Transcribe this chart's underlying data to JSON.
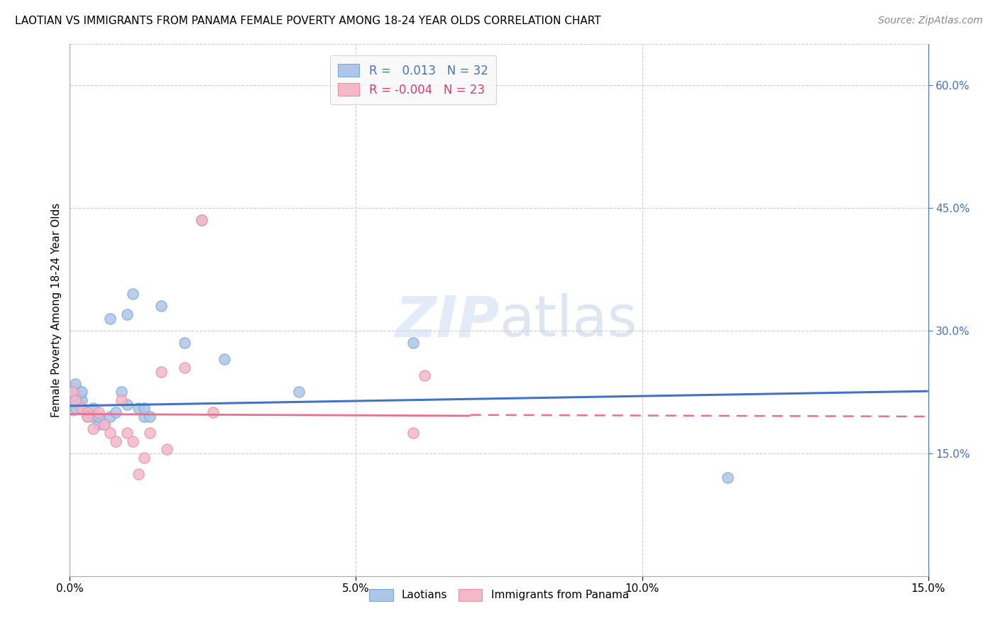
{
  "title": "LAOTIAN VS IMMIGRANTS FROM PANAMA FEMALE POVERTY AMONG 18-24 YEAR OLDS CORRELATION CHART",
  "source": "Source: ZipAtlas.com",
  "ylabel": "Female Poverty Among 18-24 Year Olds",
  "xlim": [
    0.0,
    0.15
  ],
  "ylim": [
    0.0,
    0.65
  ],
  "xtick_labels": [
    "0.0%",
    "",
    "",
    "",
    "5.0%",
    "",
    "",
    "",
    "",
    "10.0%",
    "",
    "",
    "",
    "",
    "15.0%"
  ],
  "xtick_major_labels": [
    "0.0%",
    "5.0%",
    "10.0%",
    "15.0%"
  ],
  "xtick_major_vals": [
    0.0,
    0.05,
    0.1,
    0.15
  ],
  "ytick_labels": [
    "15.0%",
    "30.0%",
    "45.0%",
    "60.0%"
  ],
  "ytick_vals": [
    0.15,
    0.3,
    0.45,
    0.6
  ],
  "laotian_color": "#aec6e8",
  "panama_color": "#f4b8c8",
  "laotian_edge": "#7aaad4",
  "panama_edge": "#e890a8",
  "trendline_laotian_color": "#4472c4",
  "trendline_panama_color": "#e87090",
  "background_color": "#ffffff",
  "grid_color": "#cccccc",
  "laotian_x": [
    0.0005,
    0.0005,
    0.001,
    0.001,
    0.001,
    0.002,
    0.002,
    0.003,
    0.003,
    0.004,
    0.004,
    0.005,
    0.005,
    0.006,
    0.007,
    0.007,
    0.008,
    0.009,
    0.01,
    0.01,
    0.011,
    0.012,
    0.013,
    0.013,
    0.014,
    0.016,
    0.02,
    0.023,
    0.027,
    0.04,
    0.06,
    0.115
  ],
  "laotian_y": [
    0.215,
    0.225,
    0.205,
    0.22,
    0.235,
    0.215,
    0.225,
    0.2,
    0.195,
    0.195,
    0.205,
    0.185,
    0.195,
    0.185,
    0.195,
    0.315,
    0.2,
    0.225,
    0.21,
    0.32,
    0.345,
    0.205,
    0.195,
    0.205,
    0.195,
    0.33,
    0.285,
    0.435,
    0.265,
    0.225,
    0.285,
    0.12
  ],
  "panama_x": [
    0.0005,
    0.001,
    0.002,
    0.003,
    0.003,
    0.004,
    0.005,
    0.006,
    0.007,
    0.008,
    0.009,
    0.01,
    0.011,
    0.012,
    0.013,
    0.014,
    0.016,
    0.017,
    0.02,
    0.023,
    0.025,
    0.06,
    0.062
  ],
  "panama_y": [
    0.225,
    0.215,
    0.205,
    0.2,
    0.195,
    0.18,
    0.2,
    0.185,
    0.175,
    0.165,
    0.215,
    0.175,
    0.165,
    0.125,
    0.145,
    0.175,
    0.25,
    0.155,
    0.255,
    0.435,
    0.2,
    0.175,
    0.245
  ],
  "watermark_zip": "ZIP",
  "watermark_atlas": "atlas",
  "R_laotian": 0.013,
  "N_laotian": 32,
  "R_panama": -0.004,
  "N_panama": 23,
  "trend_l_x0": 0.0,
  "trend_l_y0": 0.208,
  "trend_l_x1": 0.15,
  "trend_l_y1": 0.226,
  "trend_p_x0": 0.0,
  "trend_p_y0": 0.198,
  "trend_p_y_solid_end": 0.07,
  "trend_p_x1": 0.15,
  "trend_p_y1": 0.195
}
